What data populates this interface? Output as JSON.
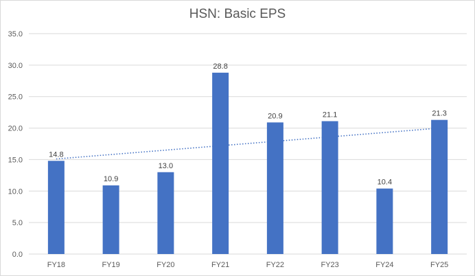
{
  "chart_data": {
    "type": "bar",
    "title": "HSN: Basic EPS",
    "categories": [
      "FY18",
      "FY19",
      "FY20",
      "FY21",
      "FY22",
      "FY23",
      "FY24",
      "FY25"
    ],
    "values": [
      14.8,
      10.9,
      13.0,
      28.8,
      20.9,
      21.1,
      10.4,
      21.3
    ],
    "data_labels": [
      "14.8",
      "10.9",
      "13.0",
      "28.8",
      "20.9",
      "21.1",
      "10.4",
      "21.3"
    ],
    "ylim": [
      0,
      35
    ],
    "yticks": [
      "0.0",
      "5.0",
      "10.0",
      "15.0",
      "20.0",
      "25.0",
      "30.0",
      "35.0"
    ],
    "grid": true,
    "trendline": {
      "type": "linear",
      "style": "dotted",
      "start_value": 15.1,
      "end_value": 20.0
    },
    "colors": {
      "bar": "#4472c4",
      "grid": "#d9d9d9",
      "text": "#595959"
    }
  }
}
